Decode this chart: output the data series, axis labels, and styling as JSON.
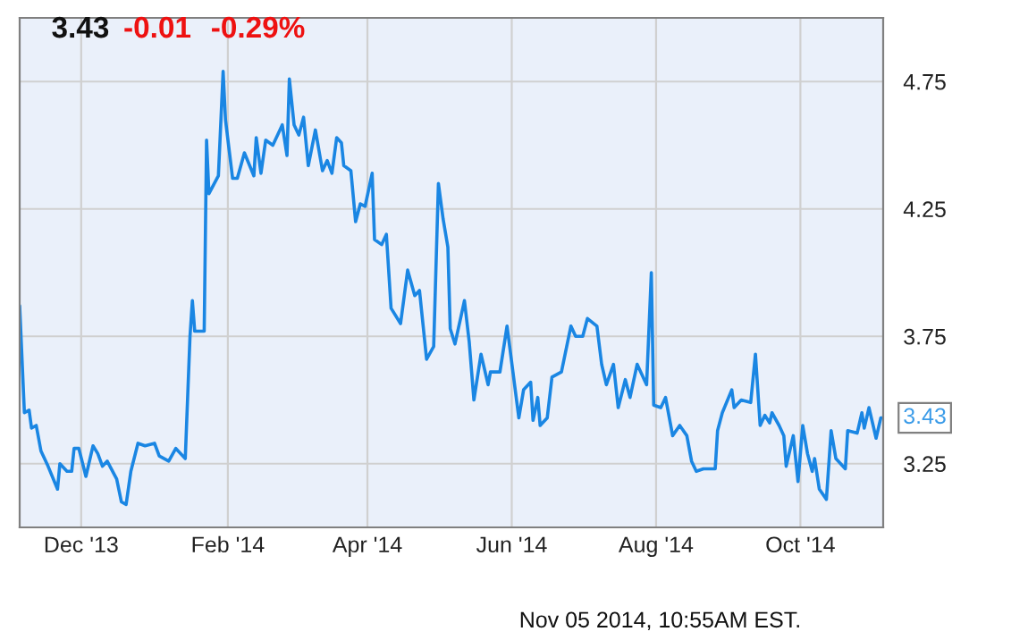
{
  "chart_data": {
    "type": "line",
    "x": [
      "2013-11-05",
      "2013-11-07",
      "2013-11-09",
      "2013-11-10",
      "2013-11-12",
      "2013-11-14",
      "2013-11-17",
      "2013-11-21",
      "2013-11-22",
      "2013-11-25",
      "2013-11-27",
      "2013-11-28",
      "2013-11-30",
      "2013-12-03",
      "2013-12-06",
      "2013-12-08",
      "2013-12-10",
      "2013-12-12",
      "2013-12-16",
      "2013-12-18",
      "2013-12-20",
      "2013-12-22",
      "2013-12-25",
      "2013-12-28",
      "2014-01-01",
      "2014-01-03",
      "2014-01-07",
      "2014-01-10",
      "2014-01-14",
      "2014-01-16",
      "2014-01-17",
      "2014-01-18",
      "2014-01-22",
      "2014-01-23",
      "2014-01-24",
      "2014-01-28",
      "2014-01-30",
      "2014-01-31",
      "2014-02-03",
      "2014-02-05",
      "2014-02-08",
      "2014-02-12",
      "2014-02-13",
      "2014-02-15",
      "2014-02-17",
      "2014-02-20",
      "2014-02-23",
      "2014-02-24",
      "2014-02-26",
      "2014-02-27",
      "2014-03-01",
      "2014-03-03",
      "2014-03-05",
      "2014-03-07",
      "2014-03-10",
      "2014-03-13",
      "2014-03-15",
      "2014-03-17",
      "2014-03-19",
      "2014-03-21",
      "2014-03-22",
      "2014-03-25",
      "2014-03-27",
      "2014-03-29",
      "2014-03-31",
      "2014-04-03",
      "2014-04-04",
      "2014-04-07",
      "2014-04-09",
      "2014-04-11",
      "2014-04-15",
      "2014-04-18",
      "2014-04-21",
      "2014-04-23",
      "2014-04-26",
      "2014-04-29",
      "2014-05-01",
      "2014-05-03",
      "2014-05-05",
      "2014-05-06",
      "2014-05-08",
      "2014-05-12",
      "2014-05-14",
      "2014-05-16",
      "2014-05-19",
      "2014-05-22",
      "2014-05-23",
      "2014-05-27",
      "2014-05-30",
      "2014-06-04",
      "2014-06-06",
      "2014-06-09",
      "2014-06-10",
      "2014-06-12",
      "2014-06-13",
      "2014-06-16",
      "2014-06-18",
      "2014-06-22",
      "2014-06-26",
      "2014-06-28",
      "2014-07-01",
      "2014-07-03",
      "2014-07-07",
      "2014-07-09",
      "2014-07-11",
      "2014-07-14",
      "2014-07-16",
      "2014-07-19",
      "2014-07-21",
      "2014-07-24",
      "2014-07-28",
      "2014-07-30",
      "2014-07-31",
      "2014-08-03",
      "2014-08-05",
      "2014-08-08",
      "2014-08-11",
      "2014-08-14",
      "2014-08-16",
      "2014-08-18",
      "2014-08-21",
      "2014-08-26",
      "2014-08-27",
      "2014-08-29",
      "2014-09-02",
      "2014-09-03",
      "2014-09-06",
      "2014-09-10",
      "2014-09-12",
      "2014-09-14",
      "2014-09-16",
      "2014-09-18",
      "2014-09-19",
      "2014-09-22",
      "2014-09-24",
      "2014-09-25",
      "2014-09-28",
      "2014-09-30",
      "2014-10-02",
      "2014-10-04",
      "2014-10-06",
      "2014-10-07",
      "2014-10-09",
      "2014-10-12",
      "2014-10-14",
      "2014-10-16",
      "2014-10-20",
      "2014-10-21",
      "2014-10-25",
      "2014-10-27",
      "2014-10-28",
      "2014-10-30",
      "2014-11-02",
      "2014-11-04",
      "2014-11-05"
    ],
    "series": [
      {
        "color": "#1a86e3",
        "values": [
          3.87,
          3.45,
          3.46,
          3.39,
          3.4,
          3.3,
          3.24,
          3.15,
          3.25,
          3.22,
          3.22,
          3.31,
          3.31,
          3.2,
          3.32,
          3.29,
          3.24,
          3.26,
          3.19,
          3.1,
          3.09,
          3.22,
          3.33,
          3.32,
          3.33,
          3.28,
          3.26,
          3.31,
          3.27,
          3.75,
          3.89,
          3.77,
          3.77,
          4.52,
          4.31,
          4.38,
          4.79,
          4.6,
          4.37,
          4.37,
          4.47,
          4.38,
          4.53,
          4.39,
          4.52,
          4.5,
          4.56,
          4.58,
          4.46,
          4.76,
          4.58,
          4.54,
          4.61,
          4.42,
          4.56,
          4.4,
          4.44,
          4.39,
          4.53,
          4.51,
          4.42,
          4.4,
          4.2,
          4.27,
          4.26,
          4.39,
          4.13,
          4.11,
          4.15,
          3.86,
          3.8,
          4.01,
          3.91,
          3.93,
          3.66,
          3.71,
          4.35,
          4.21,
          4.1,
          3.78,
          3.72,
          3.89,
          3.73,
          3.5,
          3.68,
          3.56,
          3.61,
          3.61,
          3.79,
          3.43,
          3.54,
          3.57,
          3.42,
          3.51,
          3.4,
          3.43,
          3.59,
          3.61,
          3.79,
          3.75,
          3.75,
          3.82,
          3.79,
          3.64,
          3.56,
          3.64,
          3.47,
          3.58,
          3.51,
          3.64,
          3.56,
          4.0,
          3.48,
          3.47,
          3.51,
          3.36,
          3.4,
          3.36,
          3.26,
          3.22,
          3.23,
          3.23,
          3.38,
          3.45,
          3.54,
          3.47,
          3.5,
          3.49,
          3.68,
          3.4,
          3.44,
          3.41,
          3.45,
          3.4,
          3.36,
          3.24,
          3.36,
          3.18,
          3.4,
          3.29,
          3.22,
          3.27,
          3.15,
          3.11,
          3.38,
          3.27,
          3.23,
          3.38,
          3.37,
          3.45,
          3.39,
          3.47,
          3.35,
          3.43,
          3.43
        ]
      }
    ],
    "xlim": [
      "2013-11-05",
      "2014-11-05"
    ],
    "xticks": [
      {
        "value": "2013-12-01",
        "label": "Dec '13"
      },
      {
        "value": "2014-02-01",
        "label": "Feb '14"
      },
      {
        "value": "2014-04-01",
        "label": "Apr '14"
      },
      {
        "value": "2014-06-01",
        "label": "Jun '14"
      },
      {
        "value": "2014-08-01",
        "label": "Aug '14"
      },
      {
        "value": "2014-10-01",
        "label": "Oct '14"
      }
    ],
    "ylim": [
      3.0,
      5.0
    ],
    "yticks": [
      3.25,
      3.75,
      4.25,
      4.75
    ],
    "grid": true,
    "annotations": [
      "3.43",
      "-0.01",
      "-0.29%",
      "Nov 05 2014, 10:55AM EST.",
      {
        "text": "3.43",
        "x": "2014-11-05",
        "y": 3.43
      }
    ]
  }
}
